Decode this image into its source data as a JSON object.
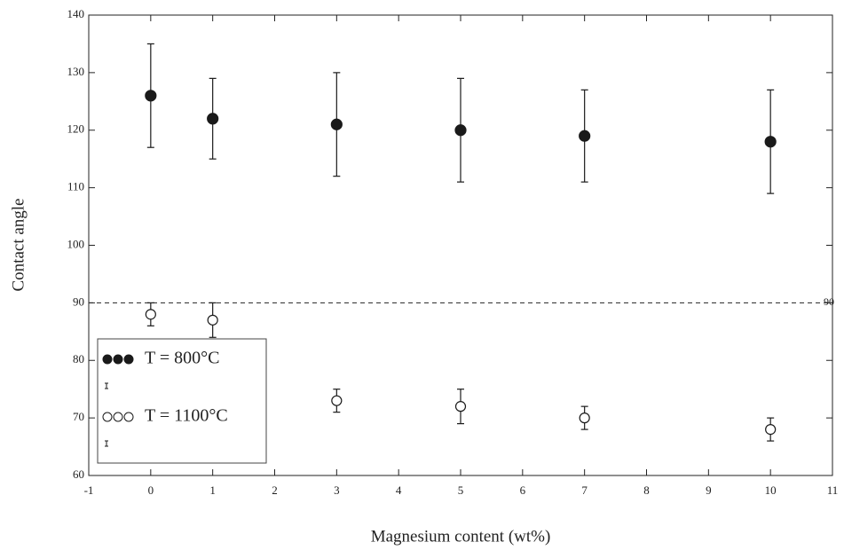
{
  "chart_data": {
    "type": "scatter",
    "xlabel": "Magnesium content (wt%)",
    "ylabel": "Contact angle",
    "xlim": [
      -1,
      11
    ],
    "xticks": [
      -1,
      0,
      1,
      2,
      3,
      4,
      5,
      6,
      7,
      8,
      9,
      10,
      11
    ],
    "ylim": [
      60,
      140
    ],
    "yticks": [
      60,
      70,
      80,
      90,
      100,
      110,
      120,
      130,
      140
    ],
    "hline": 90,
    "series": [
      {
        "name": "T = 800°C",
        "color": "#1a1a1a",
        "marker_filled": true,
        "x": [
          0,
          1,
          3,
          5,
          7,
          10
        ],
        "values": [
          126,
          122,
          121,
          120,
          119,
          118
        ],
        "errors": [
          9,
          7,
          9,
          9,
          8,
          9
        ]
      },
      {
        "name": "T = 1100°C",
        "color": "#1a1a1a",
        "marker_filled": false,
        "x": [
          0,
          1,
          3,
          5,
          7,
          10
        ],
        "values": [
          88,
          87,
          73,
          72,
          70,
          68
        ],
        "errors": [
          2,
          3,
          2,
          3,
          2,
          2
        ]
      }
    ]
  }
}
